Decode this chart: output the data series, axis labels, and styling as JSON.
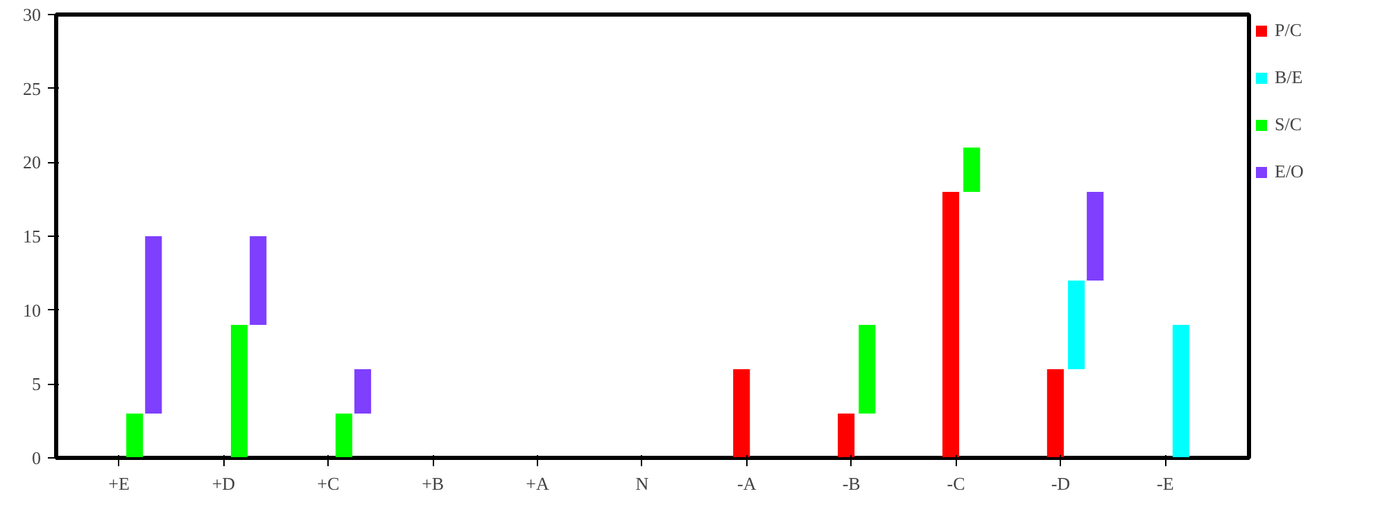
{
  "chart_data": {
    "type": "bar",
    "stacked": true,
    "categories": [
      "+E",
      "+D",
      "+C",
      "+B",
      "+A",
      "N",
      "-A",
      "-B",
      "-C",
      "-D",
      "-E"
    ],
    "series": [
      {
        "name": "P/C",
        "color": "#ff0000",
        "values": [
          null,
          null,
          null,
          null,
          null,
          null,
          6,
          3,
          18,
          6,
          null
        ]
      },
      {
        "name": "B/E",
        "color": "#00ffff",
        "values": [
          null,
          null,
          null,
          null,
          null,
          null,
          null,
          null,
          null,
          6,
          9
        ]
      },
      {
        "name": "S/C",
        "color": "#00ff00",
        "values": [
          3,
          9,
          3,
          null,
          null,
          null,
          null,
          6,
          3,
          null,
          null
        ]
      },
      {
        "name": "E/O",
        "color": "#7f3fff",
        "values": [
          12,
          6,
          3,
          null,
          null,
          null,
          null,
          null,
          null,
          6,
          null
        ]
      }
    ],
    "ylim": [
      0,
      30
    ],
    "yticks": [
      0,
      5,
      10,
      15,
      20,
      25,
      30
    ],
    "grid": false,
    "legend": "right"
  }
}
